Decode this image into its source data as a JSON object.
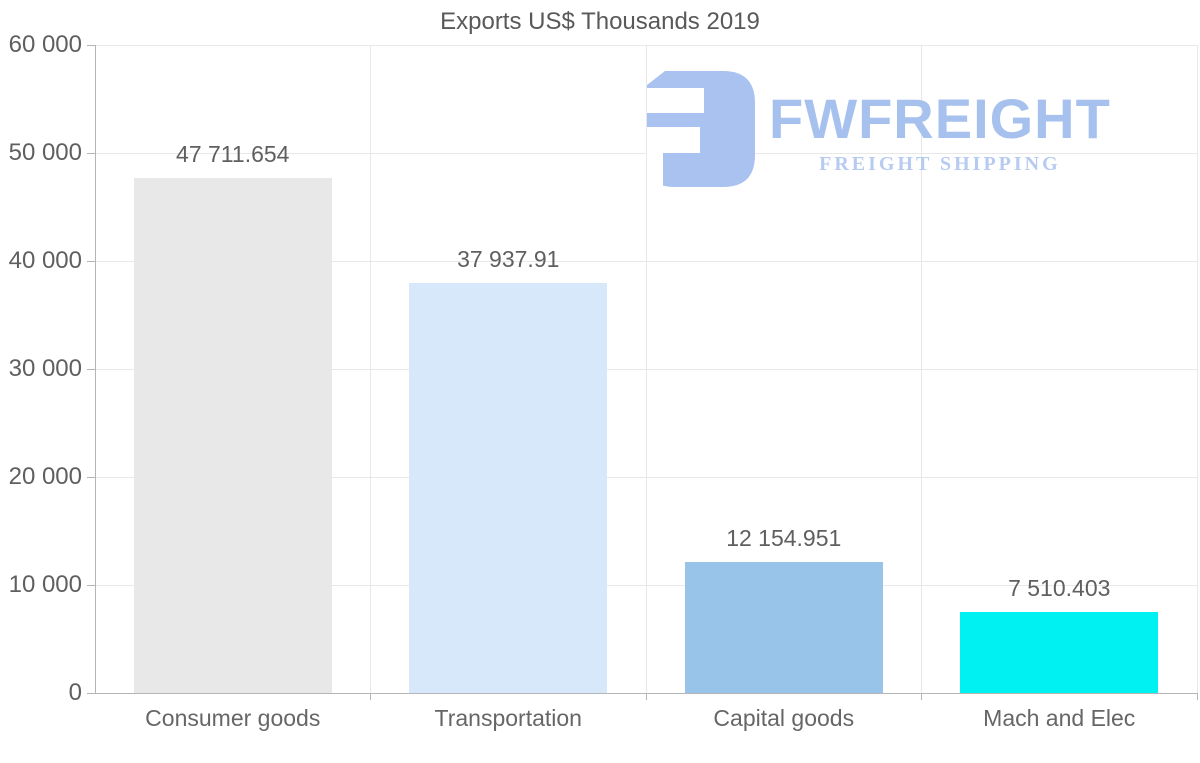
{
  "chart_data": {
    "type": "bar",
    "title": "Exports US$ Thousands 2019",
    "categories": [
      "Consumer goods",
      "Transportation",
      "Capital goods",
      "Mach and Elec"
    ],
    "values": [
      47711.654,
      37937.91,
      12154.951,
      7510.403
    ],
    "value_labels": [
      "47 711.654",
      "37 937.91",
      "12 154.951",
      "7 510.403"
    ],
    "bar_colors": [
      "#e8e8e8",
      "#d6e8f9",
      "#97c4e8",
      "#00f1f1"
    ],
    "xlabel": "",
    "ylabel": "",
    "ylim": [
      0,
      60000
    ],
    "ytick_interval": 10000,
    "ytick_labels": [
      "0",
      "10 000",
      "20 000",
      "30 000",
      "40 000",
      "50 000",
      "60 000"
    ],
    "grid": true,
    "legend_position": "none"
  },
  "watermark": {
    "brand": "FWFREIGHT",
    "tagline": "FREIGHT SHIPPING",
    "icon": "fwfreight-logo-icon",
    "brand_color": "#a6c1ee",
    "tagline_color": "#b7cbf1",
    "icon_color": "#a9c2ef"
  },
  "colors": {
    "background": "#ffffff",
    "gridline": "#e8e8e8",
    "axis": "#b5b5b5",
    "title_text": "#595959",
    "tick_text": "#5f5f5f",
    "label_text": "#666666"
  }
}
